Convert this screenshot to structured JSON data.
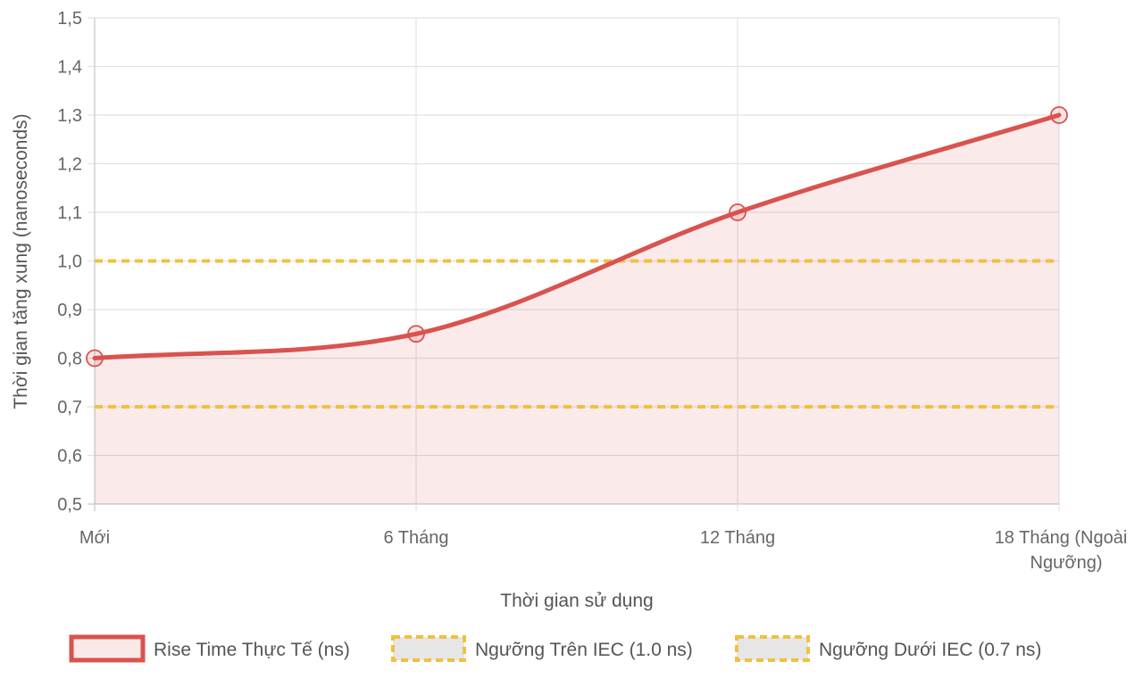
{
  "chart_data": {
    "type": "line",
    "categories": [
      "Mới",
      "6 Tháng",
      "12 Tháng",
      "18 Tháng (Ngoài Ngưỡng)"
    ],
    "category_lines": [
      [
        "Mới"
      ],
      [
        "6 Tháng"
      ],
      [
        "12 Tháng"
      ],
      [
        "18 Tháng (Ngoài",
        "Ngưỡng)"
      ]
    ],
    "xlabel": "Thời gian sử dụng",
    "ylabel": "Thời gian tăng xung (nanoseconds)",
    "ylim": [
      0.5,
      1.5
    ],
    "yticks": [
      0.5,
      0.6,
      0.7,
      0.8,
      0.9,
      1.0,
      1.1,
      1.2,
      1.3,
      1.4,
      1.5
    ],
    "ytick_labels": [
      "0,5",
      "0,6",
      "0,7",
      "0,8",
      "0,9",
      "1,0",
      "1,1",
      "1,2",
      "1,3",
      "1,4",
      "1,5"
    ],
    "grid": true,
    "legend_position": "bottom",
    "series": [
      {
        "name": "Rise Time Thực Tế (ns)",
        "values": [
          0.8,
          0.85,
          1.1,
          1.3
        ],
        "color": "#d9534f",
        "fill": "rgba(217,83,79,0.12)",
        "style": "solid",
        "smooth": true,
        "filled": true
      },
      {
        "name": "Ngưỡng Trên IEC (1.0 ns)",
        "values": [
          1.0,
          1.0,
          1.0,
          1.0
        ],
        "color": "#f0c040",
        "style": "dashed"
      },
      {
        "name": "Ngưỡng Dưới IEC (0.7 ns)",
        "values": [
          0.7,
          0.7,
          0.7,
          0.7
        ],
        "color": "#f0c040",
        "style": "dashed"
      }
    ]
  }
}
